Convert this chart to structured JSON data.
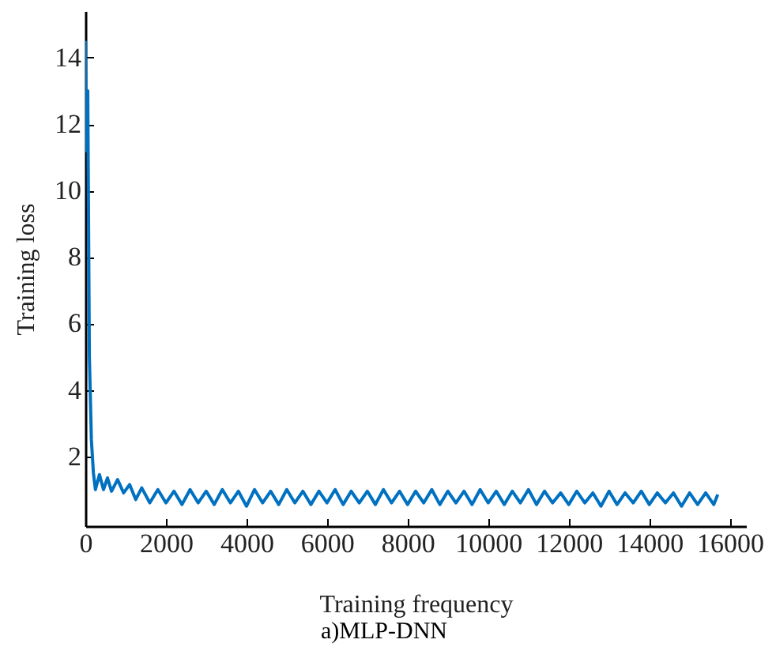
{
  "chart_data": {
    "type": "line",
    "xlabel": "Training frequency",
    "ylabel": "Training loss",
    "annotations": [
      "a)MLP-DNN"
    ],
    "xlim": [
      0,
      16400
    ],
    "xticks": [
      0,
      2000,
      4000,
      6000,
      8000,
      10000,
      12000,
      14000,
      16000
    ],
    "ylim": [
      -0.1,
      15.4
    ],
    "yticks": [
      2,
      4,
      6,
      8,
      10,
      12,
      14
    ],
    "grid": false,
    "series": [
      {
        "color": "#0070c0",
        "x": [
          0,
          30,
          60,
          100,
          150,
          200,
          250,
          350,
          450,
          550,
          650,
          800,
          950,
          1100,
          1250,
          1400,
          1600,
          1800,
          2000,
          2200,
          2400,
          2600,
          2800,
          3000,
          3200,
          3400,
          3600,
          3800,
          4000,
          4200,
          4400,
          4600,
          4800,
          5000,
          5200,
          5400,
          5600,
          5800,
          6000,
          6200,
          6400,
          6600,
          6800,
          7000,
          7200,
          7400,
          7600,
          7800,
          8000,
          8200,
          8400,
          8600,
          8800,
          9000,
          9200,
          9400,
          9600,
          9800,
          10000,
          10200,
          10400,
          10600,
          10800,
          11000,
          11200,
          11400,
          11600,
          11800,
          12000,
          12200,
          12400,
          12600,
          12800,
          13000,
          13200,
          13400,
          13600,
          13800,
          14000,
          14200,
          14400,
          14600,
          14800,
          15000,
          15200,
          15400,
          15600,
          15700
        ],
        "values": [
          14.5,
          11.2,
          13,
          5,
          2.5,
          1.5,
          1.0,
          1.45,
          1.0,
          1.35,
          0.95,
          1.3,
          0.9,
          1.15,
          0.7,
          1.05,
          0.6,
          1.0,
          0.6,
          0.95,
          0.55,
          1.0,
          0.6,
          0.95,
          0.55,
          1.0,
          0.6,
          0.95,
          0.5,
          1.0,
          0.6,
          0.95,
          0.55,
          1.0,
          0.6,
          0.95,
          0.55,
          0.95,
          0.6,
          1.0,
          0.55,
          0.95,
          0.6,
          0.95,
          0.55,
          1.0,
          0.6,
          0.95,
          0.55,
          0.95,
          0.6,
          1.0,
          0.55,
          0.95,
          0.6,
          0.95,
          0.55,
          1.0,
          0.6,
          0.95,
          0.55,
          0.95,
          0.6,
          1.0,
          0.55,
          0.95,
          0.6,
          0.9,
          0.55,
          0.95,
          0.6,
          0.9,
          0.5,
          0.95,
          0.55,
          0.9,
          0.6,
          0.95,
          0.55,
          0.9,
          0.6,
          0.9,
          0.5,
          0.9,
          0.55,
          0.9,
          0.55,
          0.85
        ]
      }
    ]
  }
}
